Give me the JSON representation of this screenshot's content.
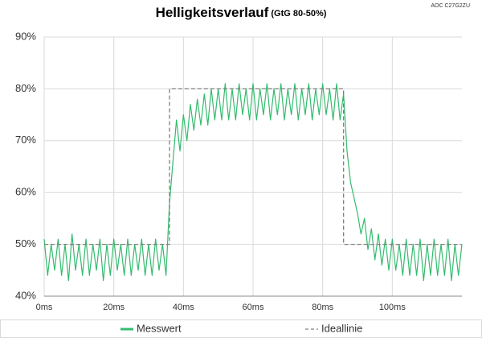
{
  "chart_data": {
    "type": "line",
    "title": "Helligkeitsverlauf",
    "subtitle": "(GtG 80-50%)",
    "annotation": "AOC C27G2ZU",
    "xlim": [
      0,
      120
    ],
    "xticks": [
      {
        "value": 0,
        "label": "0ms"
      },
      {
        "value": 20,
        "label": "20ms"
      },
      {
        "value": 40,
        "label": "40ms"
      },
      {
        "value": 60,
        "label": "60ms"
      },
      {
        "value": 80,
        "label": "80ms"
      },
      {
        "value": 100,
        "label": "100ms"
      }
    ],
    "ylim": [
      40,
      90
    ],
    "yticks": [
      {
        "value": 40,
        "label": "40%"
      },
      {
        "value": 50,
        "label": "50%"
      },
      {
        "value": 60,
        "label": "60%"
      },
      {
        "value": 70,
        "label": "70%"
      },
      {
        "value": 80,
        "label": "80%"
      },
      {
        "value": 90,
        "label": "90%"
      }
    ],
    "grid": true,
    "legend": "bottom",
    "series": [
      {
        "name": "Messwert",
        "color": "#33bb6e",
        "dash": false,
        "x": [
          0,
          1,
          2,
          3,
          4,
          5,
          6,
          7,
          8,
          9,
          10,
          11,
          12,
          13,
          14,
          15,
          16,
          17,
          18,
          19,
          20,
          21,
          22,
          23,
          24,
          25,
          26,
          27,
          28,
          29,
          30,
          31,
          32,
          33,
          34,
          35,
          36,
          37,
          38,
          39,
          40,
          41,
          42,
          43,
          44,
          45,
          46,
          47,
          48,
          49,
          50,
          51,
          52,
          53,
          54,
          55,
          56,
          57,
          58,
          59,
          60,
          61,
          62,
          63,
          64,
          65,
          66,
          67,
          68,
          69,
          70,
          71,
          72,
          73,
          74,
          75,
          76,
          77,
          78,
          79,
          80,
          81,
          82,
          83,
          84,
          85,
          86,
          87,
          88,
          89,
          90,
          91,
          92,
          93,
          94,
          95,
          96,
          97,
          98,
          99,
          100,
          101,
          102,
          103,
          104,
          105,
          106,
          107,
          108,
          109,
          110,
          111,
          112,
          113,
          114,
          115,
          116,
          117,
          118,
          119,
          120
        ],
        "values": [
          51,
          44,
          50,
          45,
          51,
          44,
          50,
          43,
          52,
          45,
          50,
          44,
          51,
          44,
          50,
          45,
          51,
          43,
          50,
          44,
          51,
          45,
          50,
          44,
          51,
          44,
          50,
          45,
          51,
          44,
          50,
          44,
          51,
          45,
          50,
          44,
          58,
          66,
          74,
          68,
          75,
          70,
          77,
          72,
          78,
          73,
          79,
          73,
          80,
          74,
          80,
          74,
          81,
          74,
          80,
          74,
          81,
          75,
          80,
          74,
          81,
          74,
          80,
          75,
          81,
          74,
          80,
          75,
          81,
          74,
          80,
          75,
          81,
          74,
          80,
          75,
          81,
          74,
          80,
          75,
          81,
          75,
          80,
          74,
          81,
          74,
          79,
          68,
          62,
          59,
          56,
          52,
          55,
          49,
          53,
          47,
          52,
          46,
          51,
          45,
          51,
          45,
          50,
          44,
          51,
          44,
          50,
          44,
          51,
          43,
          50,
          44,
          51,
          44,
          50,
          44,
          51,
          43,
          50,
          44,
          50
        ]
      },
      {
        "name": "Ideallinie",
        "color": "#7f7f7f",
        "dash": true,
        "x": [
          0,
          36,
          36,
          86,
          86,
          120
        ],
        "values": [
          50,
          50,
          80,
          80,
          50,
          50
        ]
      }
    ]
  }
}
